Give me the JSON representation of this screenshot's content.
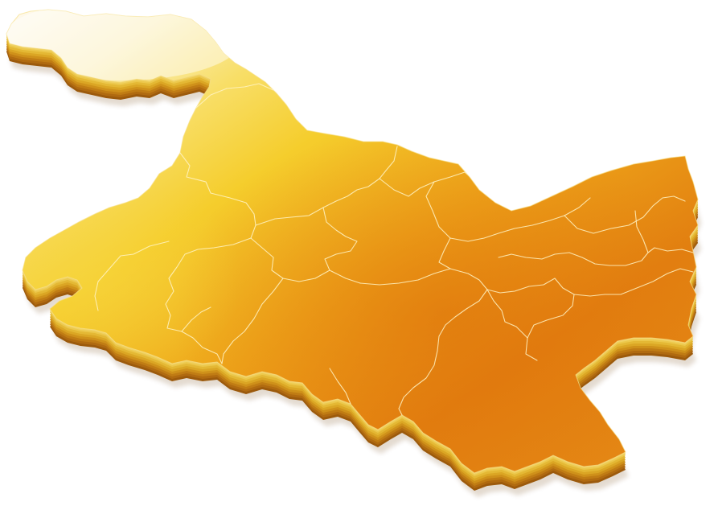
{
  "map": {
    "region_count": 13,
    "colors": {
      "north_light": "#fbf3c8",
      "mid_yellow": "#f7cf2a",
      "deep_orange": "#e0780c",
      "extrusion_dark": "#b06a10",
      "extrusion_mid": "#d9a21e",
      "extrusion_light": "#e9c44c",
      "border_line": "#fff3c4"
    }
  }
}
